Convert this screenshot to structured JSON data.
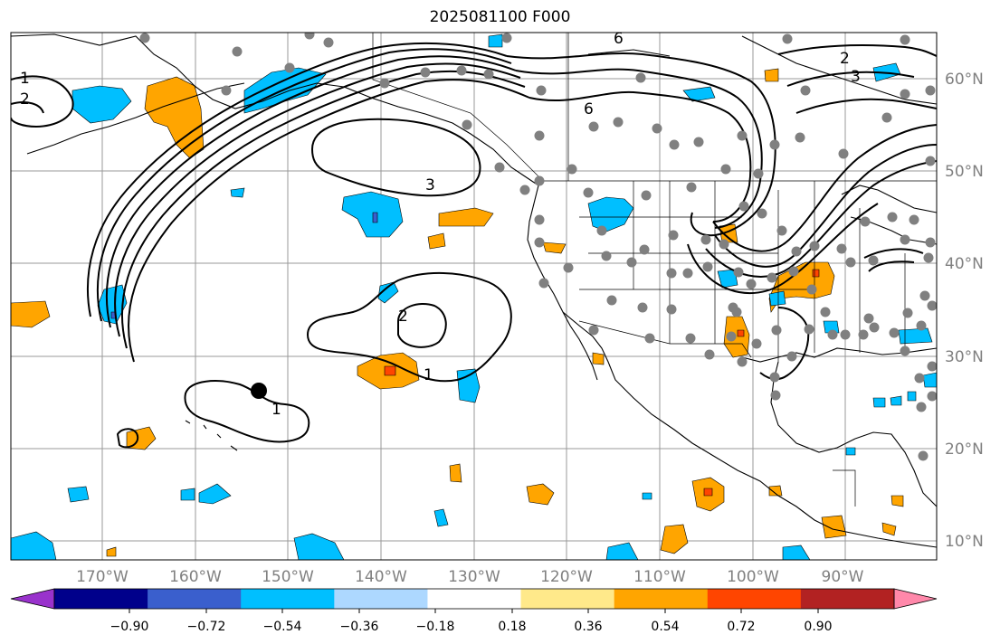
{
  "title": "2025081100 F000",
  "map": {
    "type": "weather-anomaly-map",
    "contour_field_labels": [
      "1",
      "2",
      "3",
      "6",
      "2",
      "1",
      "6",
      "3",
      "2",
      "1"
    ],
    "lon_labels": [
      "170°W",
      "160°W",
      "150°W",
      "140°W",
      "130°W",
      "120°W",
      "110°W",
      "100°W",
      "90°W"
    ],
    "lat_labels": [
      "60°N",
      "50°N",
      "40°N",
      "30°N",
      "20°N",
      "10°N"
    ],
    "grid": true,
    "station_marker_color": "#808080",
    "highlight_marker_color": "#000000",
    "contour_color": "#000000"
  },
  "colorbar": {
    "ticks": [
      "−0.90",
      "−0.72",
      "−0.54",
      "−0.36",
      "−0.18",
      "0.18",
      "0.36",
      "0.54",
      "0.72",
      "0.90"
    ],
    "colors": [
      "#9932cc",
      "#00008b",
      "#3a5fcd",
      "#00bfff",
      "#add8ff",
      "#ffffff",
      "#ffe98a",
      "#ffa500",
      "#ff4500",
      "#b22222",
      "#ff88aa"
    ]
  }
}
